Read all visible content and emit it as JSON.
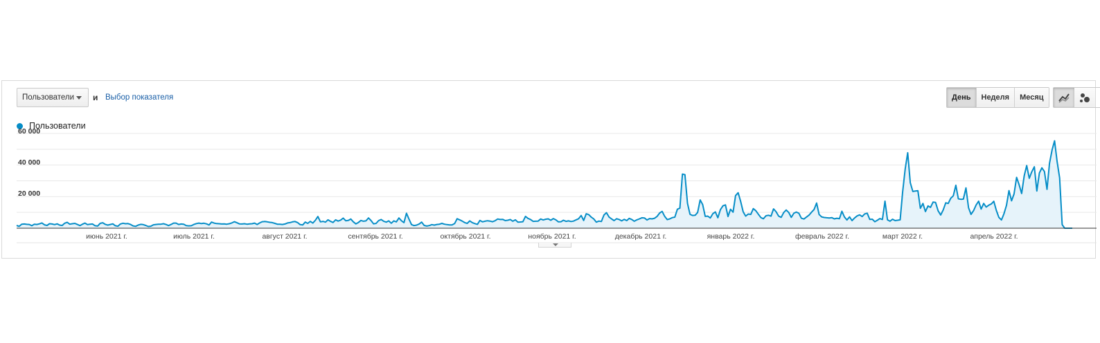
{
  "toolbar": {
    "metric_select_label": "Пользователи",
    "and_label": "и",
    "choose_metric_link": "Выбор показателя",
    "range_buttons": [
      "День",
      "Неделя",
      "Месяц"
    ],
    "active_range": "День"
  },
  "colors": {
    "series": "#058dc7",
    "fill": "#e6f3fa",
    "grid": "#e8e8e8"
  },
  "chart_data": {
    "type": "area",
    "series": [
      {
        "name": "Пользователи",
        "values": [
          1800,
          1200,
          2600,
          2700,
          2500,
          2400,
          1600,
          2600,
          2400,
          2800,
          3400,
          2200,
          1800,
          2900,
          2700,
          2300,
          2800,
          2000,
          1800,
          3200,
          3800,
          2600,
          2900,
          3100,
          2400,
          1700,
          2600,
          3300,
          2300,
          2600,
          2700,
          1600,
          1400,
          3100,
          3500,
          2500,
          2000,
          2400,
          2800,
          1600,
          1300,
          2700,
          3200,
          2900,
          3000,
          2400,
          1500,
          1200,
          2000,
          2500,
          2300,
          1800,
          1100,
          1300,
          2200,
          2400,
          2600,
          2600,
          2900,
          2400,
          1700,
          2400,
          3300,
          3300,
          2400,
          2700,
          2600,
          1700,
          1500,
          1600,
          2400,
          3000,
          3300,
          3000,
          3200,
          2800,
          2100,
          3900,
          3300,
          3000,
          2900,
          2700,
          2800,
          2600,
          2900,
          3400,
          4200,
          3500,
          2800,
          2700,
          2900,
          2600,
          2800,
          2900,
          3300,
          2400,
          3400,
          4200,
          4300,
          4100,
          3800,
          3600,
          3100,
          2600,
          2600,
          2400,
          2700,
          3400,
          3600,
          4100,
          4300,
          3600,
          2300,
          2100,
          3900,
          3100,
          4400,
          3300,
          5100,
          7500,
          4100,
          4400,
          3900,
          5400,
          4400,
          3700,
          5400,
          4600,
          5200,
          6500,
          4800,
          5000,
          5900,
          4100,
          2800,
          3700,
          5000,
          4500,
          4700,
          6600,
          4900,
          2800,
          3100,
          4900,
          5600,
          4500,
          3900,
          4700,
          3200,
          4700,
          4100,
          6600,
          4800,
          3600,
          9600,
          5800,
          2300,
          1700,
          2000,
          2700,
          3900,
          1800,
          1400,
          1700,
          2300,
          2000,
          2400,
          2600,
          3100,
          2600,
          2300,
          2100,
          2100,
          3000,
          6100,
          5400,
          4600,
          3600,
          3100,
          4700,
          3600,
          3000,
          2500,
          5000,
          4100,
          4500,
          4800,
          4600,
          4200,
          4800,
          5900,
          5600,
          5700,
          4900,
          5100,
          5600,
          4500,
          5400,
          3900,
          4000,
          4200,
          7600,
          6300,
          5600,
          4400,
          4500,
          4600,
          5900,
          5300,
          5800,
          6000,
          5100,
          6200,
          5400,
          4100,
          4200,
          5100,
          4400,
          4700,
          4300,
          4600,
          5400,
          6100,
          8200,
          5000,
          9300,
          8700,
          7100,
          5900,
          3900,
          4600,
          4300,
          8500,
          10000,
          7200,
          6000,
          4900,
          6100,
          5600,
          4700,
          5700,
          4900,
          6300,
          5600,
          4500,
          5400,
          6000,
          6700,
          6600,
          5300,
          6200,
          6000,
          6400,
          7600,
          9800,
          10800,
          7600,
          5500,
          6000,
          6800,
          7100,
          12200,
          12900,
          34800,
          34400,
          16000,
          9000,
          8200,
          8300,
          10100,
          18200,
          15200,
          7600,
          7800,
          6600,
          9300,
          10500,
          6700,
          11900,
          14400,
          15000,
          7500,
          12200,
          10300,
          21000,
          22800,
          17300,
          10500,
          7800,
          9100,
          8900,
          12600,
          11200,
          9000,
          6800,
          6100,
          8000,
          8300,
          7800,
          12400,
          10600,
          7800,
          7000,
          10100,
          11700,
          10100,
          7000,
          9600,
          10400,
          9600,
          6400,
          5900,
          7200,
          8400,
          10300,
          12000,
          16200,
          8800,
          7300,
          6900,
          6700,
          6600,
          6800,
          6000,
          6400,
          6100,
          10900,
          7200,
          5300,
          7300,
          4900,
          6600,
          7900,
          8600,
          7500,
          9200,
          9600,
          5700,
          5800,
          4200,
          5100,
          6200,
          5600,
          17400,
          5400,
          4500,
          5800,
          4900,
          5100,
          5400,
          23400,
          38200,
          48500,
          29300,
          23600,
          23900,
          24100,
          12800,
          15900,
          10700,
          14300,
          13400,
          16800,
          16600,
          11200,
          8500,
          11700,
          16300,
          15900,
          19300,
          20800,
          27600,
          18900,
          18600,
          18700,
          25900,
          13200,
          8900,
          11300,
          14900,
          17400,
          12300,
          15900,
          13600,
          14800,
          15600,
          17300,
          11400,
          7000,
          5300,
          9200,
          14700,
          24200,
          17600,
          22000,
          32700,
          27900,
          22300,
          33700,
          40300,
          32100,
          36300,
          39500,
          23900,
          35500,
          38800,
          36400,
          25000,
          41700,
          50300,
          56200,
          42800,
          32400,
          2300,
          0,
          0,
          0,
          0
        ]
      }
    ],
    "x_tick_labels": [
      "июнь 2021 г.",
      "июль 2021 г.",
      "август 2021 г.",
      "сентябрь 2021 г.",
      "октябрь 2021 г.",
      "ноябрь 2021 г.",
      "декабрь 2021 г.",
      "январь 2022 г.",
      "февраль 2022 г.",
      "март 2022 г.",
      "апрель 2022 г."
    ],
    "y_tick_labels": [
      "20 000",
      "40 000",
      "60 000"
    ],
    "y_ticks": [
      20000,
      40000,
      60000
    ],
    "ylim": [
      0,
      60000
    ],
    "grid": true,
    "legend": "top-left"
  }
}
